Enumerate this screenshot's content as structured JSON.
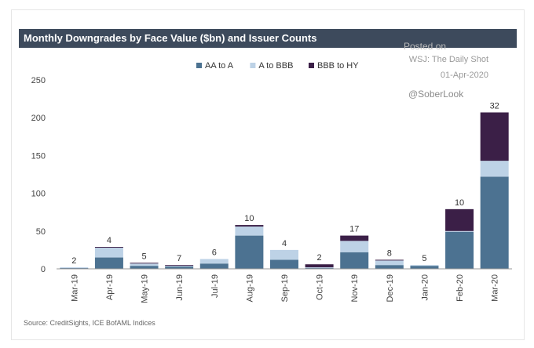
{
  "title": "Monthly Downgrades by Face Value ($bn) and Issuer Counts",
  "watermark": {
    "line1": "Posted on",
    "line2": "WSJ: The Daily Shot",
    "line3": "01-Apr-2020",
    "handle": "@SoberLook"
  },
  "source": "Source: CreditSights, ICE BofAML Indices",
  "colors": {
    "AA to A": "#4c7291",
    "A to BBB": "#bdd2e6",
    "BBB to HY": "#3b1f47"
  },
  "chart_data": {
    "type": "bar",
    "stacked": true,
    "categories": [
      "Mar-19",
      "Apr-19",
      "May-19",
      "Jun-19",
      "Jul-19",
      "Aug-19",
      "Sep-19",
      "Oct-19",
      "Nov-19",
      "Dec-19",
      "Jan-20",
      "Feb-20",
      "Mar-20"
    ],
    "series": [
      {
        "name": "AA to A",
        "values": [
          1,
          15,
          4,
          3,
          7,
          44,
          12,
          1,
          22,
          5,
          4,
          49,
          122
        ]
      },
      {
        "name": "A to BBB",
        "values": [
          1,
          13,
          3,
          1,
          6,
          12,
          13,
          1,
          15,
          6,
          1,
          1,
          21
        ]
      },
      {
        "name": "BBB to HY",
        "values": [
          0,
          1,
          1,
          1,
          0,
          2,
          0,
          4,
          7,
          1,
          0,
          29,
          64
        ]
      }
    ],
    "counts": [
      2,
      4,
      5,
      7,
      6,
      10,
      4,
      2,
      17,
      8,
      5,
      10,
      32
    ],
    "yticks": [
      0,
      50,
      100,
      150,
      200,
      250
    ],
    "ylim": [
      0,
      250
    ],
    "legend_position": "top",
    "grid": false
  }
}
